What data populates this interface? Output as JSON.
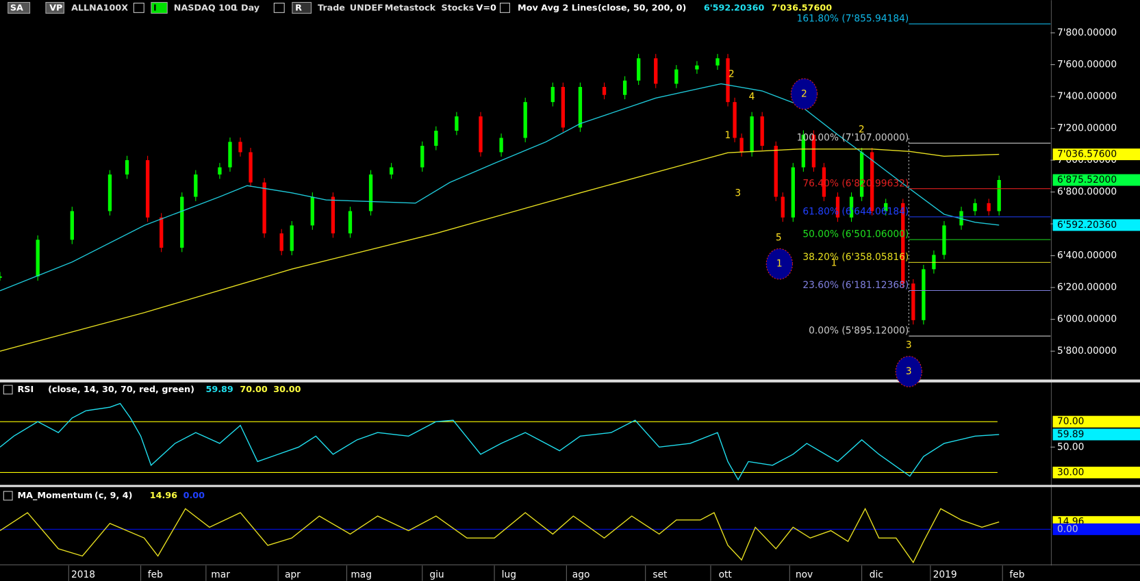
{
  "toolbar": {
    "items": [
      "SA",
      "VP",
      "ALLNA100X",
      "I",
      "NASDAQ 100",
      "1 Day",
      "R",
      "Trade",
      "UNDEF",
      "Metastock",
      "Stocks",
      "V=0",
      "Mov Avg 2 Lines",
      "(close, 50, 200, 0)",
      "6'592.20360",
      "7'036.57600"
    ]
  },
  "chart_data": [
    {
      "type": "candlestick",
      "up_color": "#00ff00",
      "down_color": "#ff0000",
      "xlim": [
        -20,
        286
      ],
      "ylim": [
        5622,
        8005
      ],
      "yticks": [
        {
          "value": 5800,
          "label": "5'800.00000"
        },
        {
          "value": 6000,
          "label": "6'000.00000"
        },
        {
          "value": 6200,
          "label": "6'200.00000"
        },
        {
          "value": 6400,
          "label": "6'400.00000"
        },
        {
          "value": 6600,
          "label": "6'600.00000"
        },
        {
          "value": 6800,
          "label": "6'800.00000"
        },
        {
          "value": 7000,
          "label": "7'000.00000"
        },
        {
          "value": 7200,
          "label": "7'200.00000"
        },
        {
          "value": 7400,
          "label": "7'400.00000"
        },
        {
          "value": 7600,
          "label": "7'600.00000"
        },
        {
          "value": 7800,
          "label": "7'800.00000"
        }
      ],
      "x": [
        -20,
        -9,
        1,
        12,
        17,
        23,
        27,
        33,
        37,
        44,
        47,
        50,
        53,
        57,
        62,
        65,
        71,
        77,
        82,
        88,
        94,
        103,
        107,
        113,
        120,
        126,
        133,
        141,
        144,
        149,
        156,
        162,
        166,
        171,
        177,
        183,
        189,
        192,
        194,
        196,
        199,
        202,
        206,
        208,
        211,
        214,
        217,
        220,
        224,
        228,
        231,
        234,
        238,
        243,
        246,
        249,
        252,
        255,
        260,
        264,
        268,
        271
      ],
      "values": [
        6270,
        6500,
        6680,
        6910,
        7000,
        6640,
        6450,
        6770,
        6910,
        6955,
        7115,
        7050,
        6860,
        6540,
        6430,
        6590,
        6770,
        6540,
        6680,
        6910,
        6955,
        7090,
        7185,
        7275,
        7050,
        7140,
        7365,
        7460,
        7205,
        7460,
        7410,
        7500,
        7640,
        7480,
        7570,
        7595,
        7640,
        7365,
        7140,
        7050,
        7275,
        7090,
        6770,
        6640,
        6955,
        7160,
        6955,
        6770,
        6640,
        6770,
        7050,
        6680,
        6730,
        6225,
        5995,
        6315,
        6405,
        6590,
        6680,
        6730,
        6680,
        6875.52
      ],
      "lines": [
        {
          "color": "#1ec8d8",
          "x": [
            -20,
            1,
            22,
            44,
            52,
            65,
            75,
            101,
            111,
            124,
            139,
            149,
            171,
            190,
            202,
            213,
            224,
            234,
            245,
            255,
            264,
            271
          ],
          "values": [
            6180,
            6360,
            6590,
            6770,
            6840,
            6795,
            6750,
            6730,
            6860,
            6980,
            7115,
            7230,
            7390,
            7480,
            7435,
            7345,
            7160,
            7000,
            6820,
            6660,
            6610,
            6592.2036
          ]
        },
        {
          "color": "#e8e020",
          "x": [
            -20,
            22,
            65,
            107,
            149,
            192,
            213,
            234,
            245,
            255,
            271
          ],
          "values": [
            5800,
            6042,
            6316,
            6540,
            6795,
            7047,
            7070,
            7070,
            7055,
            7025,
            7036.576
          ]
        }
      ],
      "fib_levels": [
        {
          "label": "161.80% (7'855.94184)",
          "value": 7855.94184,
          "color": "#10b8e8"
        },
        {
          "label": "100.00% (7'107.00000)",
          "value": 7107,
          "color": "#cccccc"
        },
        {
          "label": "76.40% (6'820.99632)",
          "value": 6820.99632,
          "color": "#e02020"
        },
        {
          "label": "61.80% (6'644.06184)",
          "value": 6644.06184,
          "color": "#2040ff"
        },
        {
          "label": "50.00% (6'501.06000)",
          "value": 6501.06,
          "color": "#20e020"
        },
        {
          "label": "38.20% (6'358.05816)",
          "value": 6358.05816,
          "color": "#e8e020"
        },
        {
          "label": "23.60% (6'181.12368)",
          "value": 6181.12368,
          "color": "#8080e0"
        },
        {
          "label": "0.00% (5'895.12000)",
          "value": 5895.12,
          "color": "#cccccc"
        }
      ],
      "badges": [
        {
          "label": "7'036.57600",
          "value": 7036.576,
          "color": "#ffff00"
        },
        {
          "label": "6'875.52000",
          "value": 6875.52,
          "color": "#00ff40"
        },
        {
          "label": "6'592.20360",
          "value": 6592.2036,
          "color": "#00f0ff"
        }
      ],
      "annotations": [
        "2",
        "4",
        "1",
        "3",
        "5",
        "1",
        "2",
        "2",
        "1",
        "3",
        "3"
      ]
    },
    {
      "type": "line",
      "title": "RSI",
      "params": "(close, 14, 30, 70, red, green)",
      "header_values": [
        "59.89",
        "70.00",
        "30.00"
      ],
      "color": "#20e0f0",
      "xlim": [
        -20,
        286
      ],
      "ylim": [
        21.4,
        100.3
      ],
      "yticks": [
        {
          "value": 50,
          "label": "50.00"
        }
      ],
      "levels": [
        {
          "value": 70,
          "label": "70.00",
          "color": "#ffff00"
        },
        {
          "value": 30,
          "label": "30.00",
          "color": "#ffff00"
        }
      ],
      "badge": {
        "value": 59.89,
        "label": "59.89",
        "color": "#00f0ff"
      },
      "x": [
        -20,
        -16,
        -9,
        -3,
        1,
        5,
        12,
        15,
        18,
        21,
        24,
        31,
        37,
        44,
        50,
        55,
        61,
        67,
        72,
        77,
        84,
        90,
        99,
        107,
        112,
        120,
        126,
        133,
        143,
        149,
        158,
        165,
        172,
        181,
        189,
        192,
        195,
        198,
        205,
        211,
        215,
        224,
        231,
        236,
        245,
        249,
        255,
        264,
        271
      ],
      "values": [
        50,
        58.6,
        70,
        61.4,
        72.9,
        78.6,
        81.4,
        84.3,
        72.9,
        58.6,
        35.7,
        52.9,
        61.4,
        52.9,
        67.1,
        38.6,
        44.3,
        50,
        58.6,
        44.3,
        55.7,
        61.4,
        58.6,
        70,
        71.1,
        44.3,
        52.9,
        61.4,
        47.1,
        58.6,
        61.4,
        71.1,
        50,
        52.9,
        61.4,
        38.6,
        24.3,
        38.6,
        35.7,
        44.3,
        52.9,
        38.6,
        55.7,
        44.3,
        27.1,
        42.6,
        52.9,
        58.6,
        59.89
      ]
    },
    {
      "type": "line",
      "title": "MA_Momentum",
      "params": "(c, 9, 4)",
      "header_values": [
        "14.96",
        "0.00"
      ],
      "color": "#e8e020",
      "xlim": [
        -20,
        286
      ],
      "ylim": [
        -70,
        82
      ],
      "levels": [
        {
          "value": 0,
          "label": "0.00",
          "color": "#0010ff"
        }
      ],
      "badge": {
        "value": 14.96,
        "label": "14.96",
        "color": "#ffff00"
      },
      "xticks": [
        {
          "value": 0,
          "label": "2018"
        },
        {
          "value": 21,
          "label": "feb"
        },
        {
          "value": 40,
          "label": "mar"
        },
        {
          "value": 61,
          "label": "apr"
        },
        {
          "value": 81,
          "label": "mag"
        },
        {
          "value": 103,
          "label": "giu"
        },
        {
          "value": 124,
          "label": "lug"
        },
        {
          "value": 145,
          "label": "ago"
        },
        {
          "value": 168,
          "label": "set"
        },
        {
          "value": 187,
          "label": "ott"
        },
        {
          "value": 210,
          "label": "nov"
        },
        {
          "value": 231,
          "label": "dic"
        },
        {
          "value": 251,
          "label": "2019"
        },
        {
          "value": 272,
          "label": "feb"
        }
      ],
      "x": [
        -20,
        -12,
        -3,
        4,
        12,
        22,
        26,
        34,
        41,
        50,
        58,
        65,
        73,
        82,
        90,
        99,
        107,
        116,
        124,
        133,
        141,
        147,
        156,
        164,
        172,
        177,
        184,
        188,
        192,
        196,
        200,
        206,
        211,
        216,
        222,
        227,
        232,
        236,
        241,
        246,
        249,
        254,
        260,
        266,
        271
      ],
      "values": [
        -3,
        34,
        -40,
        -55,
        12,
        -18,
        -55,
        42,
        4,
        34,
        -33,
        -18,
        27,
        -10,
        27,
        -3,
        27,
        -18,
        -18,
        34,
        -10,
        27,
        -18,
        27,
        -10,
        19,
        19,
        34,
        -33,
        -63,
        4,
        -40,
        4,
        -18,
        -3,
        -25,
        42,
        -18,
        -18,
        -68,
        -25,
        42,
        19,
        4,
        14.96
      ]
    }
  ]
}
